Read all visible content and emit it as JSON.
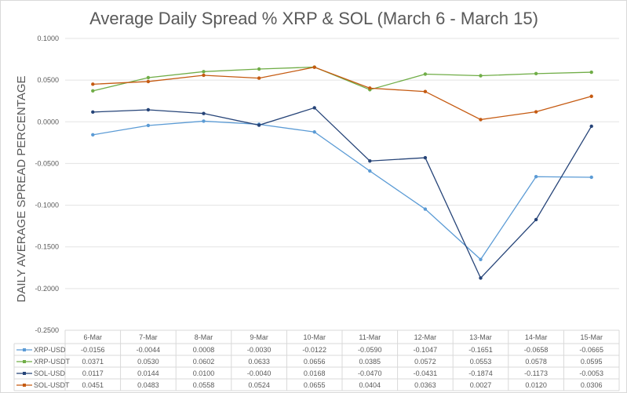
{
  "chart_data": {
    "type": "line",
    "title": "Average Daily Spread % XRP & SOL (March 6 - March 15)",
    "xlabel": "",
    "ylabel": "DAILY AVERAGE SPREAD PERCENTAGE",
    "ylim": [
      -0.25,
      0.1
    ],
    "yticks": [
      "0.1000",
      "0.0500",
      "0.0000",
      "-0.0500",
      "-0.1000",
      "-0.1500",
      "-0.2000",
      "-0.2500"
    ],
    "grid": true,
    "legend": "data-table-bottom",
    "categories": [
      "6-Mar",
      "7-Mar",
      "8-Mar",
      "9-Mar",
      "10-Mar",
      "11-Mar",
      "12-Mar",
      "13-Mar",
      "14-Mar",
      "15-Mar"
    ],
    "series": [
      {
        "name": "XRP-USD",
        "color": "#5B9BD5",
        "values": [
          -0.0156,
          -0.0044,
          0.0008,
          -0.003,
          -0.0122,
          -0.059,
          -0.1047,
          -0.1651,
          -0.0658,
          -0.0665
        ]
      },
      {
        "name": "XRP-USDT",
        "color": "#70AD47",
        "values": [
          0.0371,
          0.053,
          0.0602,
          0.0633,
          0.0656,
          0.0385,
          0.0572,
          0.0553,
          0.0578,
          0.0595
        ]
      },
      {
        "name": "SOL-USD",
        "color": "#264478",
        "values": [
          0.0117,
          0.0144,
          0.01,
          -0.004,
          0.0168,
          -0.047,
          -0.0431,
          -0.1874,
          -0.1173,
          -0.0053
        ]
      },
      {
        "name": "SOL-USDT",
        "color": "#C55A11",
        "values": [
          0.0451,
          0.0483,
          0.0558,
          0.0524,
          0.0655,
          0.0404,
          0.0363,
          0.0027,
          0.012,
          0.0306
        ]
      }
    ]
  }
}
